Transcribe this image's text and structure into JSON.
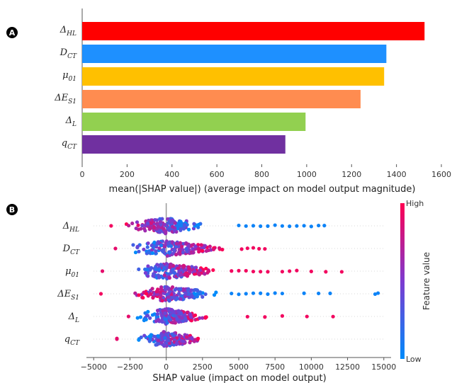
{
  "panels": {
    "a": "A",
    "b": "B"
  },
  "chart_data": [
    {
      "type": "bar",
      "orientation": "horizontal",
      "xlabel": "mean(|SHAP value|) (average impact on model output magnitude)",
      "xlim": [
        0,
        1600
      ],
      "xticks": [
        0,
        200,
        400,
        600,
        800,
        1000,
        1200,
        1400,
        1600
      ],
      "grid": false,
      "categories": [
        {
          "base": "Δ",
          "sub": "HL"
        },
        {
          "base": "D",
          "sub": "CT"
        },
        {
          "base": "μ",
          "sub": "01"
        },
        {
          "base": "ΔE",
          "sub": "S1"
        },
        {
          "base": "Δ",
          "sub": "L"
        },
        {
          "base": "q",
          "sub": "CT"
        }
      ],
      "values": [
        1525,
        1355,
        1345,
        1240,
        995,
        905
      ],
      "colors": [
        "#ff0000",
        "#1e90ff",
        "#ffc000",
        "#ff8c50",
        "#92d050",
        "#7030a0"
      ]
    },
    {
      "type": "scatter",
      "subtype": "beeswarm",
      "xlabel": "SHAP value (impact on model output)",
      "xlim": [
        -5500,
        15500
      ],
      "xticks": [
        -5000,
        -2500,
        0,
        2500,
        5000,
        7500,
        10000,
        12500,
        15000
      ],
      "categories": [
        {
          "base": "Δ",
          "sub": "HL"
        },
        {
          "base": "D",
          "sub": "CT"
        },
        {
          "base": "μ",
          "sub": "01"
        },
        {
          "base": "ΔE",
          "sub": "S1"
        },
        {
          "base": "Δ",
          "sub": "L"
        },
        {
          "base": "q",
          "sub": "CT"
        }
      ],
      "series": [
        {
          "min": -3800,
          "max": 10900,
          "core": [
            -3500,
            3000
          ],
          "sign": -1,
          "outliers": [
            5000,
            5500,
            6000,
            6500,
            7000,
            7500,
            8000,
            8500,
            9000,
            9500,
            10000,
            10500,
            10900
          ]
        },
        {
          "min": -3500,
          "max": 6800,
          "core": [
            -3000,
            4500
          ],
          "sign": 1,
          "outliers": [
            5200,
            5600,
            6000,
            6400,
            6800
          ]
        },
        {
          "min": -4400,
          "max": 12100,
          "core": [
            -3000,
            4000
          ],
          "sign": 1,
          "outliers": [
            4500,
            5000,
            5500,
            6000,
            6500,
            7000,
            8000,
            8500,
            9000,
            10000,
            11000,
            12100
          ]
        },
        {
          "min": -4500,
          "max": 14600,
          "core": [
            -3000,
            4000
          ],
          "sign": -1,
          "outliers": [
            4500,
            5000,
            5500,
            6000,
            6500,
            7000,
            7500,
            8000,
            9500,
            10500,
            11300,
            14400,
            14600
          ]
        },
        {
          "min": -2600,
          "max": 11500,
          "core": [
            -2600,
            3500
          ],
          "sign": 1,
          "outliers": [
            5600,
            6800,
            8000,
            9700,
            11500
          ]
        },
        {
          "min": -3400,
          "max": 2900,
          "core": [
            -2300,
            2900
          ],
          "sign": 1,
          "outliers": [
            -3400
          ]
        }
      ],
      "colorbar": {
        "title": "Feature value",
        "high": "High",
        "low": "Low",
        "high_color": "#ff0052",
        "low_color": "#008bfb"
      }
    }
  ]
}
